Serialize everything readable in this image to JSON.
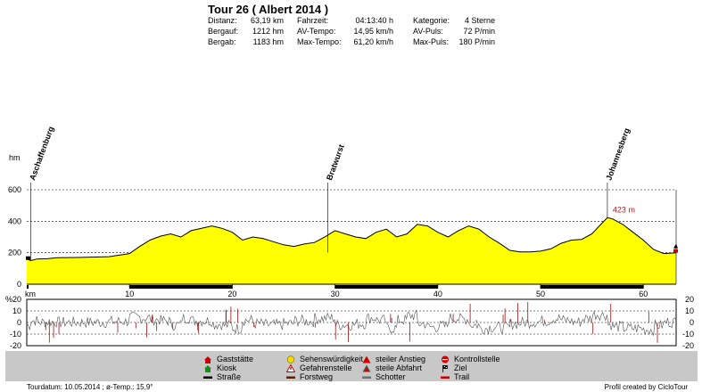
{
  "header": {
    "title": "Tour 26 ( Albert 2014 )",
    "stats": [
      {
        "label": "Distanz:",
        "value": "63,19 km"
      },
      {
        "label": "Fahrzeit:",
        "value": "04:13:40 h"
      },
      {
        "label": "Kategorie:",
        "value": "4 Sterne"
      },
      {
        "label": "Bergauf:",
        "value": "1212 hm"
      },
      {
        "label": "AV-Tempo:",
        "value": "14,95 km/h"
      },
      {
        "label": "AV-Puls:",
        "value": "72 P/min"
      },
      {
        "label": "Bergab:",
        "value": "1183 hm"
      },
      {
        "label": "Max-Tempo:",
        "value": "61,20 km/h"
      },
      {
        "label": "Max-Puls:",
        "value": "180 P/min"
      }
    ]
  },
  "chart_data": [
    {
      "type": "area",
      "ylabel": "hm",
      "xlabel": "km",
      "ylim": [
        0,
        600
      ],
      "xlim": [
        0,
        63.19
      ],
      "yticks": [
        0,
        200,
        400,
        600
      ],
      "xticks": [
        10,
        20,
        30,
        40,
        50,
        60
      ],
      "fill_color": "#ffff00",
      "x": [
        0,
        0.4,
        1,
        2,
        3,
        5,
        8,
        10,
        11,
        12,
        13,
        14,
        15,
        16,
        17,
        18,
        19,
        20,
        21,
        22,
        23,
        24,
        25,
        26,
        27,
        28,
        29,
        30,
        31,
        32,
        33,
        34,
        35,
        36,
        37,
        38,
        39,
        40,
        41,
        42,
        43,
        44,
        45,
        46,
        47,
        48,
        49,
        50,
        51,
        52,
        53,
        54,
        55,
        56,
        56.5,
        57,
        58,
        59,
        60,
        61,
        62,
        63.19
      ],
      "y": [
        160,
        150,
        160,
        162,
        168,
        170,
        175,
        195,
        240,
        280,
        305,
        320,
        300,
        340,
        355,
        370,
        355,
        330,
        280,
        300,
        290,
        270,
        250,
        240,
        255,
        265,
        300,
        340,
        320,
        300,
        290,
        330,
        350,
        300,
        320,
        380,
        370,
        330,
        300,
        340,
        370,
        350,
        300,
        260,
        215,
        205,
        205,
        210,
        225,
        260,
        280,
        285,
        320,
        390,
        423,
        415,
        380,
        330,
        280,
        220,
        195,
        200
      ],
      "markers": [
        {
          "label": "Aschaffenburg",
          "x": 0.4
        },
        {
          "label": "Bratwurst",
          "x": 29.3
        },
        {
          "label": "Johannesberg",
          "x": 56.5
        }
      ],
      "annotations": [
        {
          "text": "423 m",
          "x": 56.5,
          "y": 423
        }
      ]
    },
    {
      "type": "line",
      "ylabel": "%",
      "ylim": [
        -20,
        20
      ],
      "yticks_left": [
        20,
        10,
        0,
        -10,
        -20
      ],
      "yticks_right": [
        20,
        10,
        0,
        -10,
        -20
      ]
    }
  ],
  "legend": [
    {
      "label": "Gaststätte",
      "icon": "house-red-icon",
      "color": "#cc0000"
    },
    {
      "label": "Sehenswürdigkeit",
      "icon": "sun-face-icon",
      "color": "#f0e000"
    },
    {
      "label": "steiler Anstieg",
      "icon": "triangle-up-red-icon",
      "color": "#cc0000"
    },
    {
      "label": "Kontrollstelle",
      "icon": "stop-icon",
      "color": "#cc0000"
    },
    {
      "label": "Kiosk",
      "icon": "house-green-icon",
      "color": "#1a8a1a"
    },
    {
      "label": "Gefahrenstelle",
      "icon": "warning-triangle-icon",
      "color": "#cc0000"
    },
    {
      "label": "steile Abfahrt",
      "icon": "triangle-down-red-icon",
      "color": "#cc0000"
    },
    {
      "label": "Ziel",
      "icon": "flag-icon",
      "color": "#000000"
    },
    {
      "label": "Straße",
      "icon": "road-black-line-icon",
      "color": "#000000"
    },
    {
      "label": "Forstweg",
      "icon": "forest-brown-line-icon",
      "color": "#5a2000"
    },
    {
      "label": "Schotter",
      "icon": "gravel-gray-line-icon",
      "color": "#707070"
    },
    {
      "label": "Trail",
      "icon": "trail-red-line-icon",
      "color": "#cc0000"
    }
  ],
  "footer": {
    "left": "Tourdatum: 10.05.2014  ;  ø-Temp.: 15,9°",
    "right": "Profil created by CicloTour"
  }
}
